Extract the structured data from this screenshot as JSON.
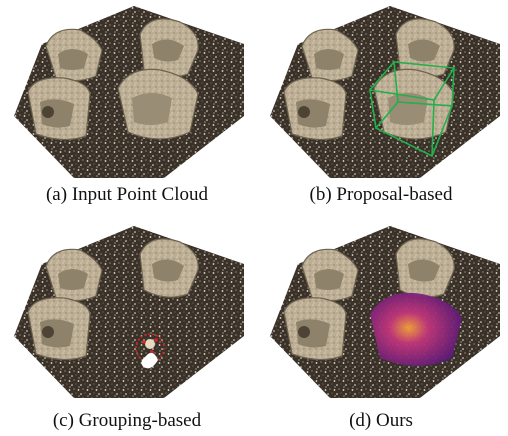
{
  "figure": {
    "panels": [
      {
        "id": "a",
        "caption": "(a)  Input Point Cloud"
      },
      {
        "id": "b",
        "caption": "(b)  Proposal-based"
      },
      {
        "id": "c",
        "caption": "(c)  Grouping-based"
      },
      {
        "id": "d",
        "caption": "(d)  Ours"
      }
    ],
    "colors": {
      "ground": "#3a3128",
      "chair_fill": "#b8a78c",
      "chair_shadow": "#6e6250",
      "box": "#22b04a",
      "group_circle": "#d8262b",
      "heat_low": "#5a1a78",
      "heat_mid": "#c2367a",
      "heat_high": "#f3a23a"
    }
  }
}
